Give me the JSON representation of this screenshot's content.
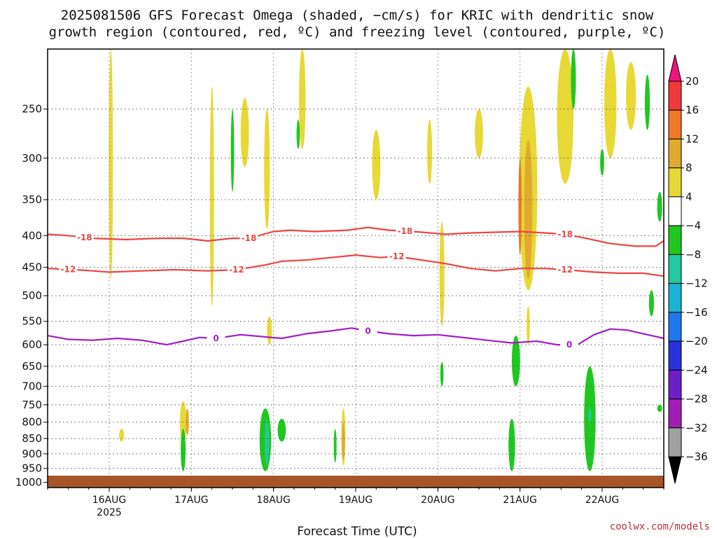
{
  "chart_data": {
    "type": "heatmap",
    "title_line1": "2025081506 GFS Forecast Omega (shaded, −cm/s) for KRIC with dendritic snow",
    "title_line2": "growth region (contoured, red, ºC) and freezing level (contoured, purple, ºC)",
    "xlabel": "Forecast Time (UTC)",
    "credit": "coolwx.com/models",
    "x_ticks": [
      {
        "label": "16AUG",
        "sub": "2025",
        "day": 16
      },
      {
        "label": "17AUG",
        "sub": "",
        "day": 17
      },
      {
        "label": "18AUG",
        "sub": "",
        "day": 18
      },
      {
        "label": "19AUG",
        "sub": "",
        "day": 19
      },
      {
        "label": "20AUG",
        "sub": "",
        "day": 20
      },
      {
        "label": "21AUG",
        "sub": "",
        "day": 21
      },
      {
        "label": "22AUG",
        "sub": "",
        "day": 22
      }
    ],
    "x_range_days": [
      15.25,
      22.75
    ],
    "y_ticks": [
      250,
      300,
      350,
      400,
      450,
      500,
      550,
      600,
      650,
      700,
      750,
      800,
      850,
      900,
      950,
      1000
    ],
    "y_range_hpa": [
      200,
      1020
    ],
    "grid": true,
    "colorbar": {
      "ticks": [
        "20",
        "16",
        "12",
        "8",
        "4",
        "−4",
        "−8",
        "−12",
        "−16",
        "−20",
        "−24",
        "−28",
        "−32",
        "−36"
      ],
      "colors": [
        "#f0147a",
        "#f03a3a",
        "#f07a28",
        "#e0aa2e",
        "#e8d835",
        "#ffffff",
        "#1fc81f",
        "#22c8a0",
        "#1ab4d2",
        "#1e78ee",
        "#2832dc",
        "#6e1ec8",
        "#a01eb4",
        "#a0a0a0",
        "#000000"
      ]
    },
    "contours": [
      {
        "value": -18,
        "color": "#ee4444",
        "labels": [
          {
            "day": 15.7,
            "text": "-18"
          },
          {
            "day": 17.7,
            "text": "-18"
          },
          {
            "day": 19.6,
            "text": "-18"
          },
          {
            "day": 21.55,
            "text": "-18"
          }
        ],
        "points": [
          [
            15.25,
            398
          ],
          [
            15.5,
            400
          ],
          [
            15.8,
            404
          ],
          [
            16.2,
            406
          ],
          [
            16.6,
            404
          ],
          [
            16.9,
            404
          ],
          [
            17.2,
            408
          ],
          [
            17.5,
            404
          ],
          [
            17.7,
            404
          ],
          [
            18.0,
            394
          ],
          [
            18.2,
            392
          ],
          [
            18.5,
            394
          ],
          [
            18.9,
            392
          ],
          [
            19.15,
            388
          ],
          [
            19.4,
            392
          ],
          [
            19.7,
            394
          ],
          [
            20.1,
            398
          ],
          [
            20.4,
            396
          ],
          [
            20.7,
            395
          ],
          [
            21.0,
            394
          ],
          [
            21.3,
            396
          ],
          [
            21.55,
            398
          ],
          [
            21.8,
            404
          ],
          [
            22.1,
            412
          ],
          [
            22.4,
            416
          ],
          [
            22.65,
            416
          ],
          [
            22.75,
            408
          ]
        ]
      },
      {
        "value": -12,
        "color": "#ee4444",
        "labels": [
          {
            "day": 15.5,
            "text": "-12"
          },
          {
            "day": 17.55,
            "text": "-12"
          },
          {
            "day": 19.5,
            "text": "-12"
          },
          {
            "day": 21.55,
            "text": "-12"
          }
        ],
        "points": [
          [
            15.25,
            452
          ],
          [
            15.6,
            454
          ],
          [
            16.0,
            458
          ],
          [
            16.4,
            456
          ],
          [
            16.8,
            454
          ],
          [
            17.2,
            456
          ],
          [
            17.55,
            454
          ],
          [
            17.9,
            446
          ],
          [
            18.1,
            440
          ],
          [
            18.4,
            438
          ],
          [
            18.7,
            434
          ],
          [
            19.0,
            430
          ],
          [
            19.3,
            434
          ],
          [
            19.5,
            432
          ],
          [
            19.8,
            438
          ],
          [
            20.1,
            444
          ],
          [
            20.4,
            452
          ],
          [
            20.7,
            456
          ],
          [
            21.0,
            452
          ],
          [
            21.3,
            452
          ],
          [
            21.55,
            454
          ],
          [
            21.9,
            458
          ],
          [
            22.2,
            460
          ],
          [
            22.5,
            460
          ],
          [
            22.75,
            465
          ]
        ]
      },
      {
        "value": 0,
        "color": "#a01ec8",
        "labels": [
          {
            "day": 17.3,
            "text": "0"
          },
          {
            "day": 19.15,
            "text": "0"
          },
          {
            "day": 21.6,
            "text": "0"
          }
        ],
        "points": [
          [
            15.25,
            580
          ],
          [
            15.5,
            588
          ],
          [
            15.8,
            590
          ],
          [
            16.1,
            586
          ],
          [
            16.4,
            590
          ],
          [
            16.7,
            600
          ],
          [
            16.9,
            592
          ],
          [
            17.1,
            584
          ],
          [
            17.3,
            586
          ],
          [
            17.6,
            578
          ],
          [
            17.85,
            582
          ],
          [
            18.1,
            586
          ],
          [
            18.4,
            576
          ],
          [
            18.7,
            570
          ],
          [
            18.95,
            564
          ],
          [
            19.15,
            570
          ],
          [
            19.4,
            576
          ],
          [
            19.7,
            580
          ],
          [
            20.0,
            578
          ],
          [
            20.3,
            584
          ],
          [
            20.6,
            590
          ],
          [
            20.9,
            596
          ],
          [
            21.2,
            592
          ],
          [
            21.45,
            600
          ],
          [
            21.7,
            600
          ],
          [
            21.9,
            578
          ],
          [
            22.1,
            566
          ],
          [
            22.3,
            568
          ],
          [
            22.5,
            576
          ],
          [
            22.75,
            586
          ]
        ]
      }
    ],
    "omega_shaded": [
      {
        "value": 4,
        "day": 16.02,
        "top": 200,
        "bottom": 470,
        "w": 0.05
      },
      {
        "value": 4,
        "day": 17.25,
        "top": 230,
        "bottom": 520,
        "w": 0.05
      },
      {
        "value": 4,
        "day": 17.65,
        "top": 240,
        "bottom": 310,
        "w": 0.1
      },
      {
        "value": 4,
        "day": 17.92,
        "top": 250,
        "bottom": 390,
        "w": 0.07
      },
      {
        "value": 4,
        "day": 18.35,
        "top": 200,
        "bottom": 290,
        "w": 0.08
      },
      {
        "value": 4,
        "day": 19.25,
        "top": 270,
        "bottom": 350,
        "w": 0.1
      },
      {
        "value": 4,
        "day": 19.9,
        "top": 260,
        "bottom": 330,
        "w": 0.06
      },
      {
        "value": 4,
        "day": 20.05,
        "top": 380,
        "bottom": 560,
        "w": 0.06
      },
      {
        "value": 4,
        "day": 20.5,
        "top": 250,
        "bottom": 300,
        "w": 0.1
      },
      {
        "value": 4,
        "day": 21.1,
        "top": 230,
        "bottom": 490,
        "w": 0.22
      },
      {
        "value": 8,
        "day": 21.1,
        "top": 280,
        "bottom": 470,
        "w": 0.1
      },
      {
        "value": 12,
        "day": 21.0,
        "top": 300,
        "bottom": 430,
        "w": 0.04
      },
      {
        "value": 4,
        "day": 21.55,
        "top": 200,
        "bottom": 330,
        "w": 0.2
      },
      {
        "value": 4,
        "day": 22.1,
        "top": 200,
        "bottom": 300,
        "w": 0.15
      },
      {
        "value": 4,
        "day": 22.35,
        "top": 210,
        "bottom": 270,
        "w": 0.12
      },
      {
        "value": 4,
        "day": 16.9,
        "top": 740,
        "bottom": 870,
        "w": 0.08
      },
      {
        "value": 8,
        "day": 16.95,
        "top": 760,
        "bottom": 840,
        "w": 0.04
      },
      {
        "value": 4,
        "day": 16.15,
        "top": 820,
        "bottom": 860,
        "w": 0.06
      },
      {
        "value": 4,
        "day": 17.95,
        "top": 540,
        "bottom": 600,
        "w": 0.06
      },
      {
        "value": 4,
        "day": 18.85,
        "top": 760,
        "bottom": 940,
        "w": 0.05
      },
      {
        "value": 8,
        "day": 18.85,
        "top": 800,
        "bottom": 920,
        "w": 0.02
      },
      {
        "value": 4,
        "day": 21.1,
        "top": 520,
        "bottom": 600,
        "w": 0.04
      },
      {
        "value": -4,
        "day": 16.9,
        "top": 820,
        "bottom": 960,
        "w": 0.06
      },
      {
        "value": -4,
        "day": 17.9,
        "top": 760,
        "bottom": 960,
        "w": 0.14
      },
      {
        "value": -8,
        "day": 17.92,
        "top": 790,
        "bottom": 940,
        "w": 0.05
      },
      {
        "value": -4,
        "day": 18.1,
        "top": 790,
        "bottom": 860,
        "w": 0.1
      },
      {
        "value": -4,
        "day": 17.5,
        "top": 250,
        "bottom": 340,
        "w": 0.04
      },
      {
        "value": -4,
        "day": 18.3,
        "top": 260,
        "bottom": 290,
        "w": 0.04
      },
      {
        "value": -4,
        "day": 18.75,
        "top": 820,
        "bottom": 930,
        "w": 0.03
      },
      {
        "value": -4,
        "day": 20.05,
        "top": 640,
        "bottom": 700,
        "w": 0.04
      },
      {
        "value": -4,
        "day": 20.95,
        "top": 580,
        "bottom": 700,
        "w": 0.1
      },
      {
        "value": -4,
        "day": 20.9,
        "top": 790,
        "bottom": 960,
        "w": 0.08
      },
      {
        "value": -4,
        "day": 21.85,
        "top": 650,
        "bottom": 960,
        "w": 0.14
      },
      {
        "value": -8,
        "day": 21.85,
        "top": 760,
        "bottom": 800,
        "w": 0.04
      },
      {
        "value": -4,
        "day": 22.0,
        "top": 290,
        "bottom": 320,
        "w": 0.05
      },
      {
        "value": -4,
        "day": 22.55,
        "top": 220,
        "bottom": 270,
        "w": 0.06
      },
      {
        "value": -4,
        "day": 22.6,
        "top": 490,
        "bottom": 540,
        "w": 0.06
      },
      {
        "value": -4,
        "day": 22.7,
        "top": 340,
        "bottom": 380,
        "w": 0.06
      },
      {
        "value": -4,
        "day": 22.7,
        "top": 750,
        "bottom": 770,
        "w": 0.06
      },
      {
        "value": -4,
        "day": 21.65,
        "top": 200,
        "bottom": 250,
        "w": 0.06
      }
    ]
  }
}
